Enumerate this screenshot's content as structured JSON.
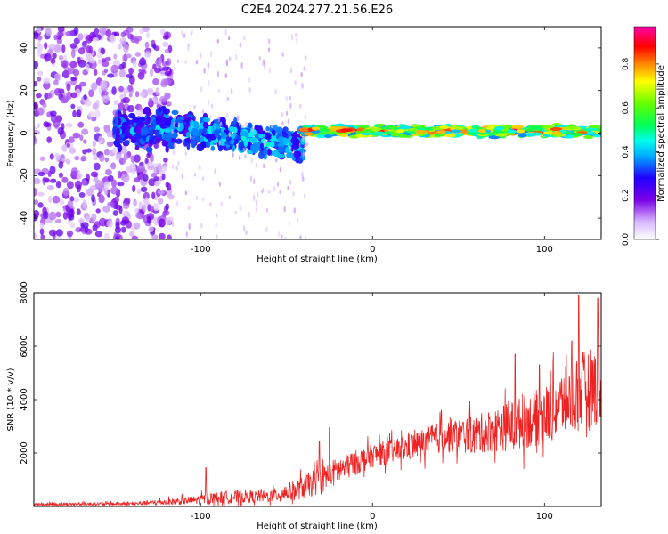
{
  "title": "C2E4.2024.277.21.56.E26",
  "chart_data": [
    {
      "type": "heatmap",
      "xlabel": "Height of straight line (km)",
      "ylabel": "Frequency (Hz)",
      "xlim": [
        -197,
        133
      ],
      "ylim": [
        -50,
        50
      ],
      "xticks": [
        -100,
        0,
        100
      ],
      "yticks": [
        -40,
        -20,
        0,
        20,
        40
      ],
      "colorbar": {
        "label": "Normalized spectral amplitude",
        "ticks": [
          0.0,
          0.2,
          0.4,
          0.6,
          0.8
        ],
        "range": [
          0,
          0.97
        ],
        "stops": [
          {
            "v": 0.0,
            "color": "#ffffff"
          },
          {
            "v": 0.08,
            "color": "#d9b8ff"
          },
          {
            "v": 0.18,
            "color": "#7a00e6"
          },
          {
            "v": 0.28,
            "color": "#2000ff"
          },
          {
            "v": 0.38,
            "color": "#00aaff"
          },
          {
            "v": 0.45,
            "color": "#00ffee"
          },
          {
            "v": 0.52,
            "color": "#00ff55"
          },
          {
            "v": 0.62,
            "color": "#66ff00"
          },
          {
            "v": 0.72,
            "color": "#ffff00"
          },
          {
            "v": 0.8,
            "color": "#ff8800"
          },
          {
            "v": 0.88,
            "color": "#ff0000"
          },
          {
            "v": 0.97,
            "color": "#ff00aa"
          }
        ]
      },
      "regions": [
        {
          "x_range": [
            -197,
            -117
          ],
          "freq_range": [
            -50,
            50
          ],
          "amplitude": [
            0.05,
            0.22
          ]
        },
        {
          "x_range": [
            -150,
            -100
          ],
          "freq_center": 2,
          "freq_halfwidth": 10,
          "amplitude": [
            0.2,
            0.45
          ]
        },
        {
          "x_range": [
            -100,
            -40
          ],
          "freq_center_start": 0,
          "freq_center_end": -6,
          "freq_halfwidth": 8,
          "amplitude": [
            0.25,
            0.5
          ]
        },
        {
          "x_range": [
            -40,
            133
          ],
          "freq_center": 1,
          "freq_halfwidth": 3,
          "amplitude": [
            0.35,
            0.95
          ]
        }
      ]
    },
    {
      "type": "line",
      "xlabel": "Height of straight line (km)",
      "ylabel": "SNR (10 * v/v)",
      "xlim": [
        -197,
        133
      ],
      "ylim": [
        0,
        8000
      ],
      "xticks": [
        -100,
        0,
        100
      ],
      "yticks": [
        2000,
        4000,
        6000,
        8000
      ],
      "color": "#ee2222",
      "envelope": [
        {
          "x": -197,
          "mean": 80,
          "spread": 100
        },
        {
          "x": -140,
          "mean": 100,
          "spread": 120
        },
        {
          "x": -110,
          "mean": 200,
          "spread": 250
        },
        {
          "x": -85,
          "mean": 350,
          "spread": 450
        },
        {
          "x": -60,
          "mean": 380,
          "spread": 400
        },
        {
          "x": -45,
          "mean": 600,
          "spread": 700
        },
        {
          "x": -30,
          "mean": 1000,
          "spread": 1000
        },
        {
          "x": -15,
          "mean": 1500,
          "spread": 900
        },
        {
          "x": 0,
          "mean": 1900,
          "spread": 800
        },
        {
          "x": 20,
          "mean": 2200,
          "spread": 900
        },
        {
          "x": 40,
          "mean": 2600,
          "spread": 1100
        },
        {
          "x": 60,
          "mean": 2700,
          "spread": 1300
        },
        {
          "x": 80,
          "mean": 3000,
          "spread": 1700
        },
        {
          "x": 100,
          "mean": 3400,
          "spread": 2000
        },
        {
          "x": 120,
          "mean": 4300,
          "spread": 2600
        },
        {
          "x": 133,
          "mean": 4600,
          "spread": 2800
        }
      ],
      "peaks": [
        {
          "x": -97,
          "y": 1450
        },
        {
          "x": -31,
          "y": 2450
        },
        {
          "x": -25,
          "y": 2950
        },
        {
          "x": 40,
          "y": 3600
        },
        {
          "x": 83,
          "y": 5700
        },
        {
          "x": 97,
          "y": 5300
        },
        {
          "x": 116,
          "y": 6200
        },
        {
          "x": 120,
          "y": 7900
        },
        {
          "x": 131,
          "y": 7800
        }
      ]
    }
  ]
}
